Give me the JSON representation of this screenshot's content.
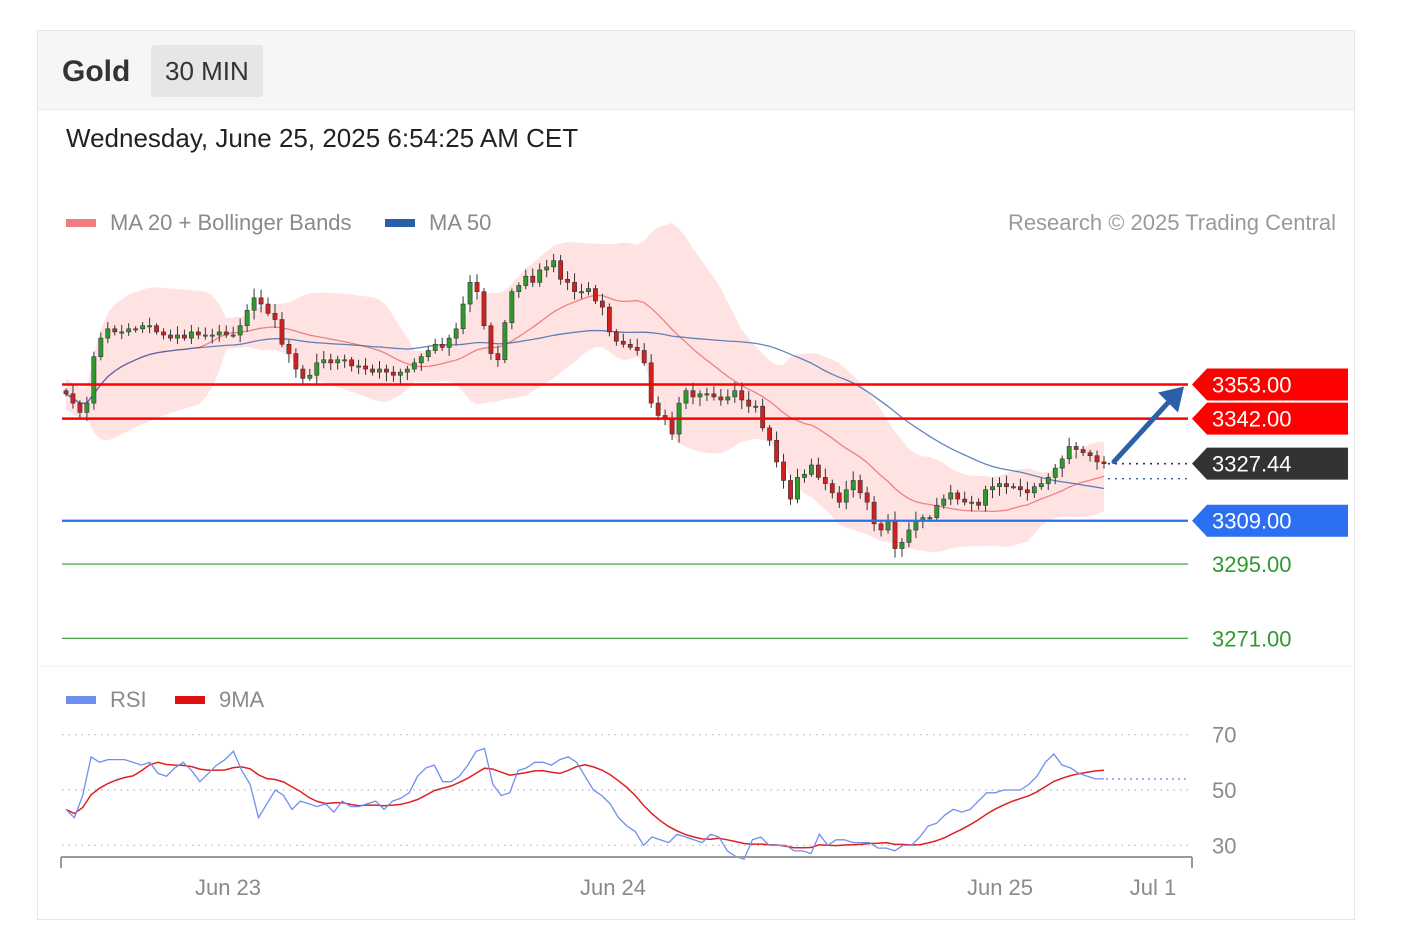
{
  "header": {
    "symbol": "Gold",
    "period": "30 MIN"
  },
  "datetime": "Wednesday, June 25, 2025 6:54:25 AM CET",
  "legend": {
    "ma20": "MA 20 + Bollinger Bands",
    "ma50": "MA 50",
    "credit": "Research © 2025 Trading Central",
    "rsi": "RSI",
    "rsi_ma": "9MA"
  },
  "colors": {
    "resistance": "#ff0000",
    "last": "#333333",
    "pivot": "#2c6ff0",
    "support": "#2e9a2e",
    "ma20": "#f08080",
    "ma50": "#2b5fa8",
    "band": "#ffdede",
    "up": "#2e9a2e",
    "down": "#d02020",
    "rsi": "#6d8ff0",
    "rsi_ma": "#e02020"
  },
  "chart_data": [
    {
      "type": "candlestick",
      "title": "Gold 30 MIN",
      "x_ticks": [
        "Jun 23",
        "Jun 24",
        "Jun 25",
        "Jul 1"
      ],
      "ylim": [
        3264,
        3390
      ],
      "levels": [
        {
          "label": "3353.00",
          "value": 3353.0,
          "kind": "resistance"
        },
        {
          "label": "3342.00",
          "value": 3342.0,
          "kind": "resistance"
        },
        {
          "label": "3327.44",
          "value": 3327.44,
          "kind": "last"
        },
        {
          "label": "3309.00",
          "value": 3309.0,
          "kind": "pivot"
        },
        {
          "label": "3295.00",
          "value": 3295.0,
          "kind": "support"
        },
        {
          "label": "3271.00",
          "value": 3271.0,
          "kind": "support"
        }
      ],
      "close": [
        3350,
        3347,
        3344,
        3347,
        3362,
        3368,
        3371,
        3370,
        3370,
        3371,
        3371,
        3372,
        3372,
        3370,
        3369,
        3368,
        3369,
        3368,
        3370,
        3369,
        3369,
        3369,
        3370,
        3369,
        3369,
        3372,
        3377,
        3381,
        3379,
        3376,
        3374,
        3366,
        3363,
        3358,
        3355,
        3356,
        3360,
        3361,
        3360,
        3361,
        3361,
        3359,
        3359,
        3358,
        3357,
        3358,
        3357,
        3356,
        3357,
        3358,
        3360,
        3362,
        3364,
        3366,
        3365,
        3368,
        3371,
        3379,
        3386,
        3383,
        3372,
        3363,
        3361,
        3373,
        3383,
        3385,
        3388,
        3386,
        3390,
        3391,
        3393,
        3387,
        3386,
        3383,
        3383,
        3384,
        3380,
        3378,
        3370,
        3367,
        3366,
        3365,
        3364,
        3360,
        3347,
        3343,
        3342,
        3337,
        3347,
        3351,
        3349,
        3350,
        3350,
        3349,
        3348,
        3349,
        3351,
        3348,
        3346,
        3346,
        3339,
        3335,
        3328,
        3322,
        3316,
        3323,
        3324,
        3327,
        3323,
        3321,
        3318,
        3315,
        3319,
        3322,
        3318,
        3315,
        3308,
        3306,
        3309,
        3300,
        3302,
        3306,
        3309,
        3310,
        3310,
        3314,
        3316,
        3318,
        3316,
        3315,
        3315,
        3314,
        3319,
        3320,
        3321,
        3320,
        3320,
        3319,
        3318,
        3320,
        3321,
        3323,
        3326,
        3329,
        3333,
        3332,
        3331,
        3330,
        3328,
        3327.44
      ]
    },
    {
      "type": "line",
      "title": "RSI",
      "series": [
        {
          "name": "RSI"
        },
        {
          "name": "9MA"
        }
      ],
      "y_ticks": [
        70,
        50,
        30
      ],
      "ylim": [
        20,
        80
      ],
      "rsi": [
        43,
        40,
        48,
        62,
        60,
        61,
        61,
        61,
        60,
        59,
        60,
        56,
        55,
        58,
        60,
        57,
        53,
        56,
        59,
        61,
        64,
        57,
        52,
        40,
        45,
        50,
        48,
        43,
        46,
        45,
        44,
        45,
        42,
        46,
        44,
        44,
        45,
        46,
        43,
        46,
        47,
        49,
        55,
        58,
        59,
        53,
        53,
        55,
        59,
        64,
        65,
        52,
        48,
        49,
        57,
        58,
        60,
        60,
        59,
        61,
        62,
        60,
        55,
        50,
        48,
        45,
        40,
        37,
        35,
        30,
        33,
        32,
        31,
        34,
        33,
        32,
        31,
        34,
        33,
        28,
        26,
        25,
        32,
        33,
        30,
        30,
        30,
        28,
        28,
        27,
        34,
        30,
        32,
        32,
        31,
        31,
        31,
        29,
        29,
        28,
        30,
        30,
        33,
        37,
        38,
        41,
        43,
        42,
        43,
        46,
        49,
        49,
        50,
        50,
        50,
        52,
        55,
        60,
        63,
        59,
        58,
        56,
        55,
        54,
        54
      ]
    }
  ]
}
